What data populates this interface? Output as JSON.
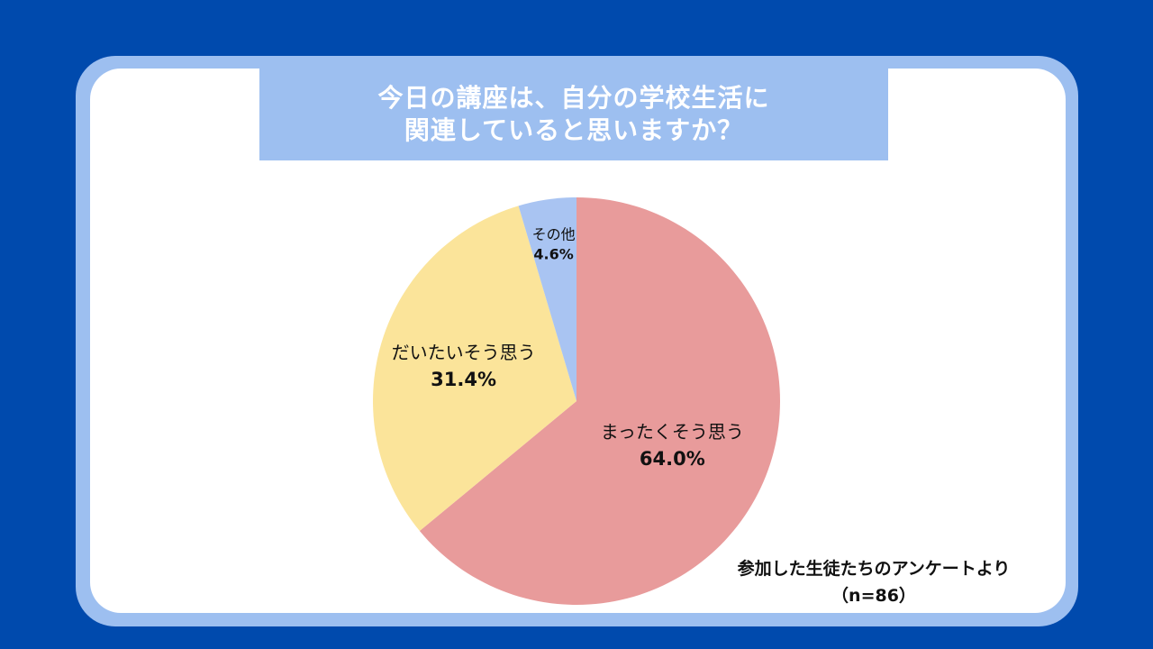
{
  "colors": {
    "background": "#004AAD",
    "frame": "#9DBFF0",
    "card": "#FFFFFF"
  },
  "chart_data": {
    "type": "pie",
    "title": "今日の講座は、自分の学校生活に\n関連していると思いますか？",
    "slices": [
      {
        "label": "まったくそう思う",
        "value": 64.0,
        "display": "64.0%",
        "color": "#E89B9B"
      },
      {
        "label": "だいたいそう思う",
        "value": 31.4,
        "display": "31.4%",
        "color": "#FBE49A"
      },
      {
        "label": "その他",
        "value": 4.6,
        "display": "4.6%",
        "color": "#A9C4F2"
      }
    ],
    "start_angle": "12 o'clock",
    "direction": "clockwise",
    "legend": "none",
    "data_labels": "inside"
  },
  "footnote": {
    "line1": "参加した生徒たちのアンケートより",
    "line2": "（n=86）"
  }
}
